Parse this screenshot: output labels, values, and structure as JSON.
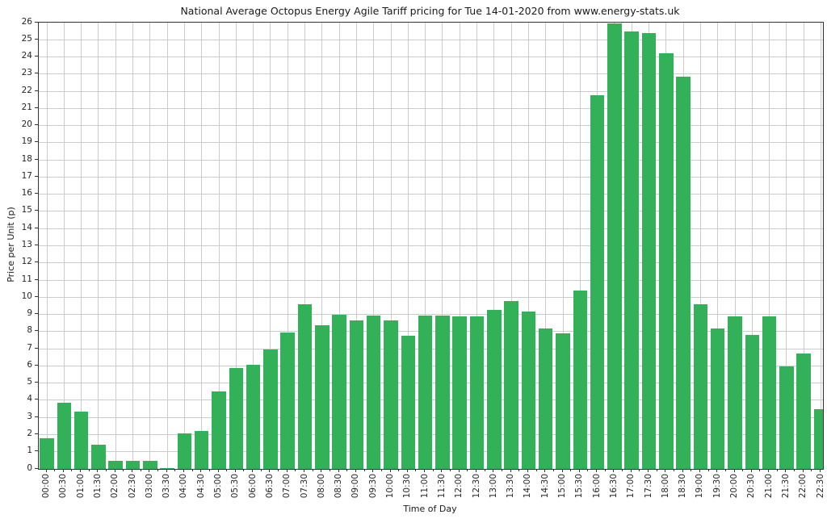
{
  "chart_data": {
    "type": "bar",
    "title": "National Average Octopus Energy Agile Tariff pricing for Tue 14-01-2020 from www.energy-stats.uk",
    "xlabel": "Time of Day",
    "ylabel": "Price per Unit (p)",
    "categories": [
      "00:00",
      "00:30",
      "01:00",
      "01:30",
      "02:00",
      "02:30",
      "03:00",
      "03:30",
      "04:00",
      "04:30",
      "05:00",
      "05:30",
      "06:00",
      "06:30",
      "07:00",
      "07:30",
      "08:00",
      "08:30",
      "09:00",
      "09:30",
      "10:00",
      "10:30",
      "11:00",
      "11:30",
      "12:00",
      "12:30",
      "13:00",
      "13:30",
      "14:00",
      "14:30",
      "15:00",
      "15:30",
      "16:00",
      "16:30",
      "17:00",
      "17:30",
      "18:00",
      "18:30",
      "19:00",
      "19:30",
      "20:00",
      "20:30",
      "21:00",
      "21:30",
      "22:00",
      "22:30"
    ],
    "values": [
      1.8,
      3.85,
      3.35,
      1.4,
      0.45,
      0.45,
      0.45,
      0.05,
      2.05,
      2.2,
      4.5,
      5.9,
      6.05,
      6.95,
      7.95,
      9.6,
      8.35,
      9.0,
      8.65,
      8.95,
      8.65,
      7.75,
      8.95,
      8.95,
      8.9,
      8.9,
      9.25,
      9.8,
      9.15,
      8.2,
      7.9,
      10.4,
      21.75,
      25.95,
      25.5,
      25.4,
      24.2,
      22.85,
      9.6,
      8.2,
      8.9,
      7.8,
      8.9,
      5.95,
      6.7,
      3.5
    ],
    "ylim": [
      0,
      26
    ],
    "ytick_step": 1,
    "grid": true,
    "legend": "none",
    "bar_color": "#33b159",
    "grid_color": "#cccccc",
    "axis_color": "#333333",
    "text_color": "#1a1a1a"
  }
}
